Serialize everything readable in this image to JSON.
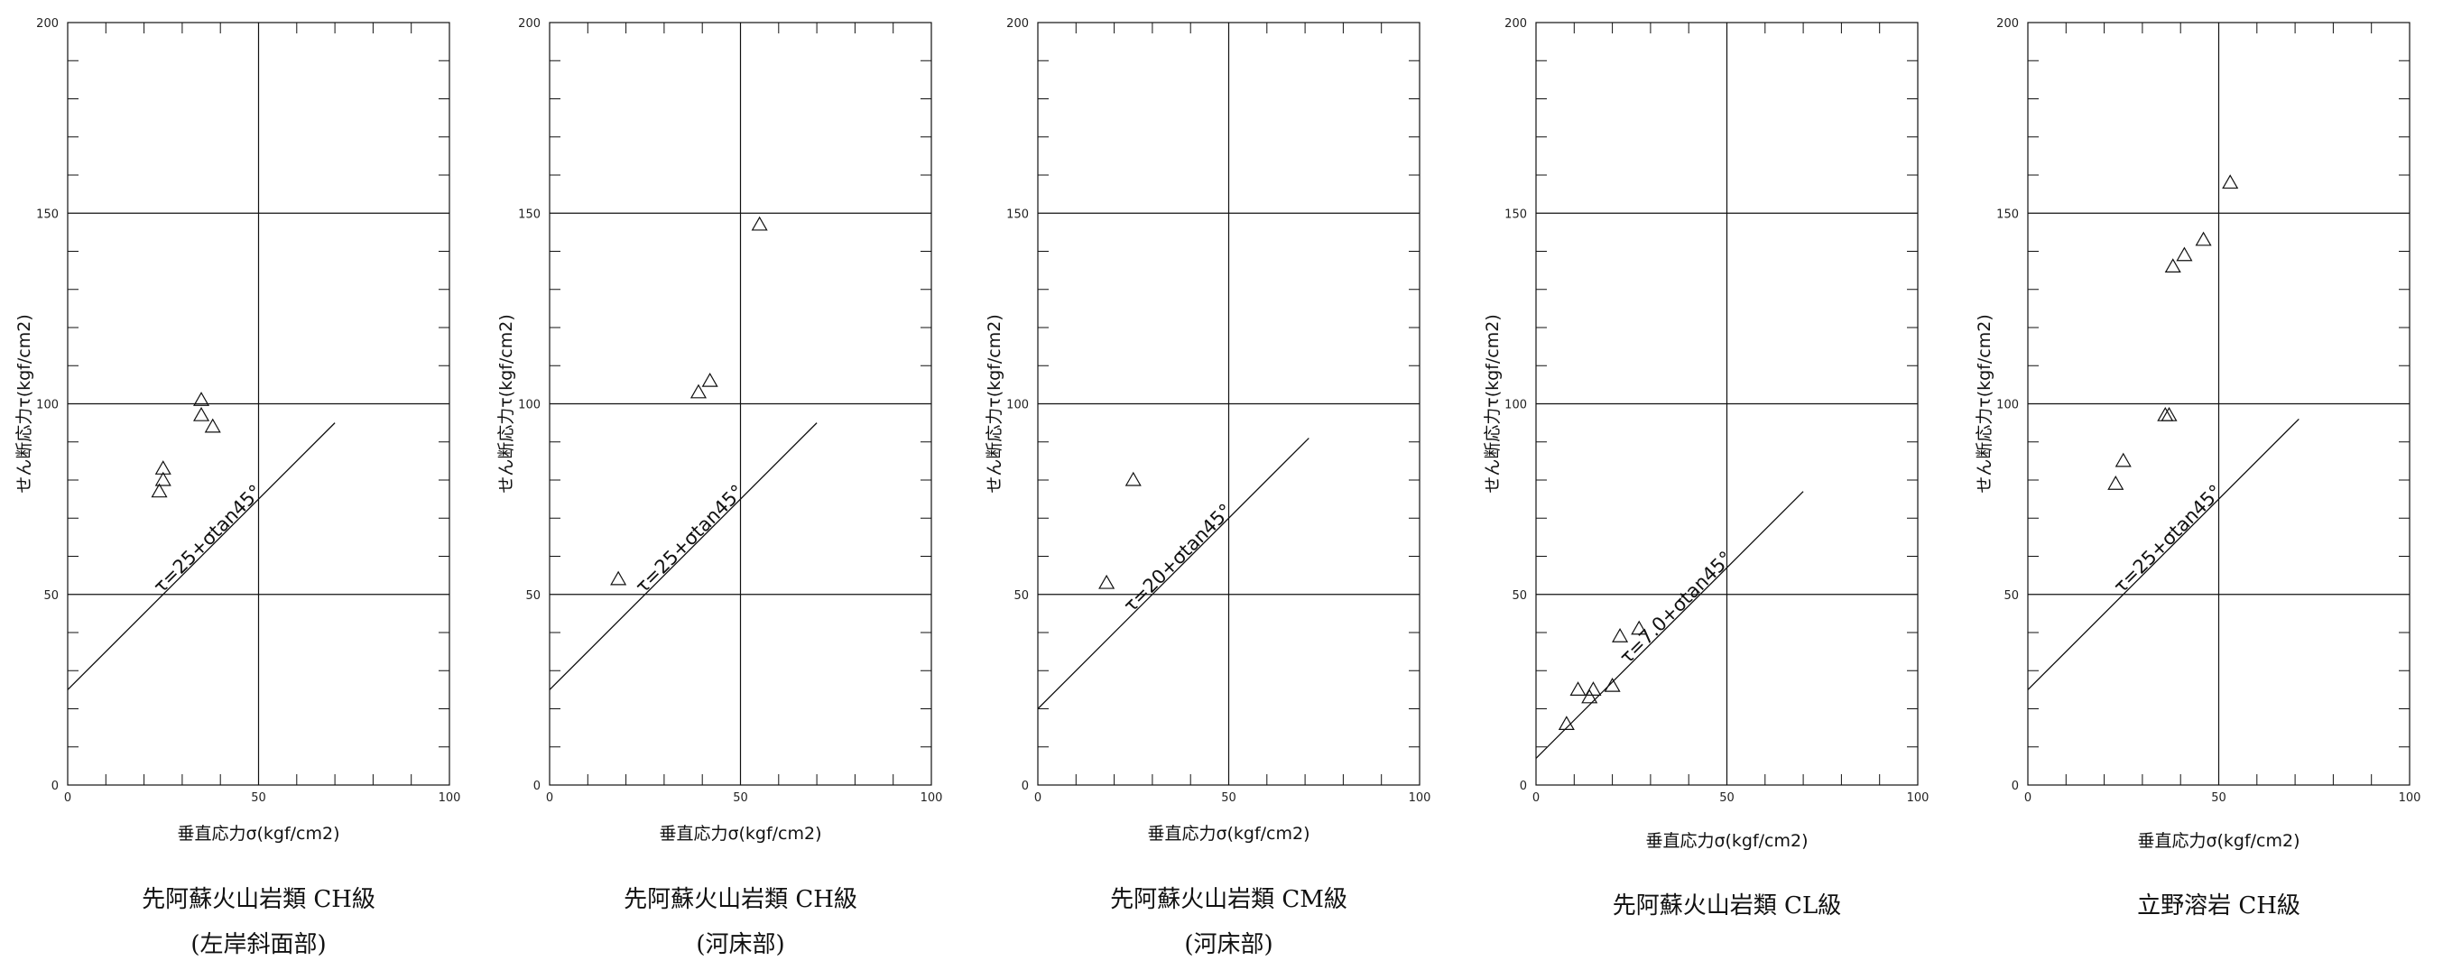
{
  "chart_data": [
    {
      "type": "scatter",
      "xlabel": "垂直応力σ(kgf/cm2)",
      "ylabel": "せん断応力τ(kgf/cm2)",
      "xlim": [
        0,
        100
      ],
      "ylim": [
        0,
        200
      ],
      "xticks": [
        0,
        50,
        100
      ],
      "yticks": [
        0,
        50,
        100,
        150,
        200
      ],
      "grid": true,
      "points": [
        [
          24,
          77
        ],
        [
          25,
          80
        ],
        [
          25,
          83
        ],
        [
          35,
          97
        ],
        [
          35,
          101
        ],
        [
          38,
          94
        ]
      ],
      "fit_line": {
        "intercept": 25,
        "slope": 1,
        "x_range": [
          0,
          70
        ],
        "label": "τ=25+σtan45°"
      },
      "caption": "先阿蘇火山岩類 CH級",
      "caption_sub": "(左岸斜面部)"
    },
    {
      "type": "scatter",
      "xlabel": "垂直応力σ(kgf/cm2)",
      "ylabel": "せん断応力τ(kgf/cm2)",
      "xlim": [
        0,
        100
      ],
      "ylim": [
        0,
        200
      ],
      "xticks": [
        0,
        50,
        100
      ],
      "yticks": [
        0,
        50,
        100,
        150,
        200
      ],
      "grid": true,
      "points": [
        [
          18,
          54
        ],
        [
          39,
          103
        ],
        [
          42,
          106
        ],
        [
          55,
          147
        ]
      ],
      "fit_line": {
        "intercept": 25,
        "slope": 1,
        "x_range": [
          0,
          70
        ],
        "label": "τ=25+σtan45°"
      },
      "caption": "先阿蘇火山岩類 CH級",
      "caption_sub": "(河床部)"
    },
    {
      "type": "scatter",
      "xlabel": "垂直応力σ(kgf/cm2)",
      "ylabel": "せん断応力τ(kgf/cm2)",
      "xlim": [
        0,
        100
      ],
      "ylim": [
        0,
        200
      ],
      "xticks": [
        0,
        50,
        100
      ],
      "yticks": [
        0,
        50,
        100,
        150,
        200
      ],
      "grid": true,
      "points": [
        [
          18,
          53
        ],
        [
          25,
          80
        ]
      ],
      "fit_line": {
        "intercept": 20,
        "slope": 1,
        "x_range": [
          0,
          71
        ],
        "label": "τ=20+σtan45°"
      },
      "caption": "先阿蘇火山岩類 CM級",
      "caption_sub": "(河床部)"
    },
    {
      "type": "scatter",
      "xlabel": "垂直応力σ(kgf/cm2)",
      "ylabel": "せん断応力τ(kgf/cm2)",
      "xlim": [
        0,
        100
      ],
      "ylim": [
        0,
        200
      ],
      "xticks": [
        0,
        50,
        100
      ],
      "yticks": [
        0,
        50,
        100,
        150,
        200
      ],
      "grid": true,
      "points": [
        [
          8,
          16
        ],
        [
          11,
          25
        ],
        [
          14,
          23
        ],
        [
          15,
          25
        ],
        [
          20,
          26
        ],
        [
          22,
          39
        ],
        [
          27,
          41
        ]
      ],
      "fit_line": {
        "intercept": 7,
        "slope": 1,
        "x_range": [
          0,
          70
        ],
        "label": "τ=7.0+σtan45°"
      },
      "caption": "先阿蘇火山岩類 CL級",
      "caption_sub": ""
    },
    {
      "type": "scatter",
      "xlabel": "垂直応力σ(kgf/cm2)",
      "ylabel": "せん断応力τ(kgf/cm2)",
      "xlim": [
        0,
        100
      ],
      "ylim": [
        0,
        200
      ],
      "xticks": [
        0,
        50,
        100
      ],
      "yticks": [
        0,
        50,
        100,
        150,
        200
      ],
      "grid": true,
      "points": [
        [
          23,
          79
        ],
        [
          25,
          85
        ],
        [
          36,
          97
        ],
        [
          37,
          97
        ],
        [
          38,
          136
        ],
        [
          41,
          139
        ],
        [
          46,
          143
        ],
        [
          53,
          158
        ]
      ],
      "fit_line": {
        "intercept": 25,
        "slope": 1,
        "x_range": [
          0,
          71
        ],
        "label": "τ=25+σtan45°"
      },
      "caption": "立野溶岩 CH級",
      "caption_sub": ""
    }
  ]
}
